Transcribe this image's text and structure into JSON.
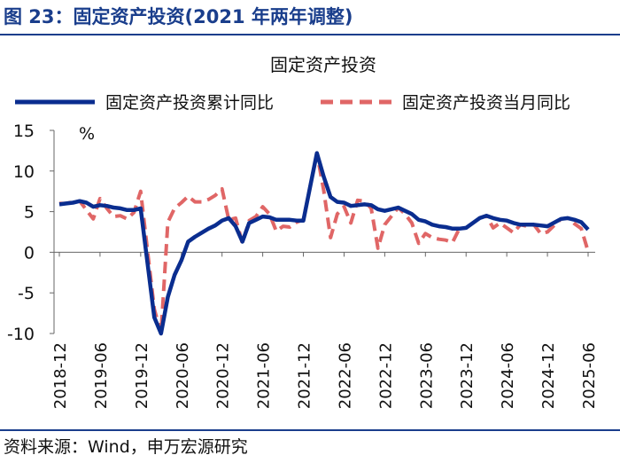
{
  "figure_title": "图 23：固定资产投资(2021 年两年调整)",
  "source": "资料来源：Wind，申万宏源研究",
  "colors": {
    "title": "#1a3e8c",
    "series_cumulative": "#0a2d8f",
    "series_monthly": "#e06666"
  },
  "chart_data": {
    "type": "line",
    "title": "固定资产投资",
    "unit_label": "%",
    "ylim": [
      -10,
      15
    ],
    "yticks": [
      15,
      10,
      5,
      0,
      -5,
      -10
    ],
    "grid": false,
    "legend_position": "top",
    "x_tick_labels": [
      "2018-12",
      "2019-06",
      "2019-12",
      "2020-06",
      "2020-12",
      "2021-06",
      "2021-12",
      "2022-06",
      "2022-12",
      "2023-06",
      "2023-12",
      "2024-06",
      "2024-12",
      "2025-06"
    ],
    "series": [
      {
        "name": "固定资产投资累计同比",
        "style": "solid",
        "color": "#0a2d8f",
        "points": [
          [
            "2018-12",
            5.9
          ],
          [
            "2019-01",
            6.0
          ],
          [
            "2019-02",
            6.1
          ],
          [
            "2019-03",
            6.3
          ],
          [
            "2019-04",
            6.1
          ],
          [
            "2019-05",
            5.6
          ],
          [
            "2019-06",
            5.8
          ],
          [
            "2019-07",
            5.7
          ],
          [
            "2019-08",
            5.5
          ],
          [
            "2019-09",
            5.4
          ],
          [
            "2019-10",
            5.2
          ],
          [
            "2019-11",
            5.2
          ],
          [
            "2019-12",
            5.4
          ],
          [
            "2020-02",
            -8.0
          ],
          [
            "2020-03",
            -10.0
          ],
          [
            "2020-04",
            -5.5
          ],
          [
            "2020-05",
            -2.8
          ],
          [
            "2020-06",
            -1.0
          ],
          [
            "2020-07",
            1.3
          ],
          [
            "2020-08",
            1.9
          ],
          [
            "2020-09",
            2.4
          ],
          [
            "2020-10",
            2.9
          ],
          [
            "2020-11",
            3.3
          ],
          [
            "2020-12",
            3.9
          ],
          [
            "2021-01",
            4.2
          ],
          [
            "2021-02",
            3.2
          ],
          [
            "2021-03",
            1.3
          ],
          [
            "2021-04",
            3.6
          ],
          [
            "2021-05",
            4.0
          ],
          [
            "2021-06",
            4.4
          ],
          [
            "2021-07",
            4.3
          ],
          [
            "2021-08",
            4.0
          ],
          [
            "2021-09",
            4.0
          ],
          [
            "2021-10",
            4.0
          ],
          [
            "2021-11",
            3.9
          ],
          [
            "2021-12",
            3.9
          ],
          [
            "2022-02",
            12.2
          ],
          [
            "2022-03",
            9.3
          ],
          [
            "2022-04",
            6.8
          ],
          [
            "2022-05",
            6.2
          ],
          [
            "2022-06",
            6.1
          ],
          [
            "2022-07",
            5.7
          ],
          [
            "2022-08",
            5.8
          ],
          [
            "2022-09",
            5.9
          ],
          [
            "2022-10",
            5.8
          ],
          [
            "2022-11",
            5.3
          ],
          [
            "2022-12",
            5.1
          ],
          [
            "2023-02",
            5.5
          ],
          [
            "2023-03",
            5.1
          ],
          [
            "2023-04",
            4.7
          ],
          [
            "2023-05",
            4.0
          ],
          [
            "2023-06",
            3.8
          ],
          [
            "2023-07",
            3.4
          ],
          [
            "2023-08",
            3.2
          ],
          [
            "2023-09",
            3.1
          ],
          [
            "2023-10",
            2.9
          ],
          [
            "2023-11",
            2.9
          ],
          [
            "2023-12",
            3.0
          ],
          [
            "2024-02",
            4.2
          ],
          [
            "2024-03",
            4.5
          ],
          [
            "2024-04",
            4.2
          ],
          [
            "2024-05",
            4.0
          ],
          [
            "2024-06",
            3.9
          ],
          [
            "2024-07",
            3.6
          ],
          [
            "2024-08",
            3.4
          ],
          [
            "2024-09",
            3.4
          ],
          [
            "2024-10",
            3.4
          ],
          [
            "2024-11",
            3.3
          ],
          [
            "2024-12",
            3.2
          ],
          [
            "2025-02",
            4.1
          ],
          [
            "2025-03",
            4.2
          ],
          [
            "2025-04",
            4.0
          ],
          [
            "2025-05",
            3.7
          ],
          [
            "2025-06",
            2.8
          ]
        ]
      },
      {
        "name": "固定资产投资当月同比",
        "style": "dashed",
        "color": "#e06666",
        "points": [
          [
            "2018-12",
            6.0
          ],
          [
            "2019-01",
            6.0
          ],
          [
            "2019-02",
            6.2
          ],
          [
            "2019-03",
            6.3
          ],
          [
            "2019-04",
            5.2
          ],
          [
            "2019-05",
            4.1
          ],
          [
            "2019-06",
            6.6
          ],
          [
            "2019-07",
            5.4
          ],
          [
            "2019-08",
            4.4
          ],
          [
            "2019-09",
            4.5
          ],
          [
            "2019-10",
            4.1
          ],
          [
            "2019-11",
            4.9
          ],
          [
            "2019-12",
            7.5
          ],
          [
            "2020-02",
            -7.0
          ],
          [
            "2020-03",
            -10.0
          ],
          [
            "2020-04",
            3.7
          ],
          [
            "2020-05",
            5.4
          ],
          [
            "2020-06",
            6.1
          ],
          [
            "2020-07",
            6.9
          ],
          [
            "2020-08",
            6.2
          ],
          [
            "2020-09",
            6.2
          ],
          [
            "2020-10",
            6.5
          ],
          [
            "2020-11",
            7.0
          ],
          [
            "2020-12",
            7.8
          ],
          [
            "2021-01",
            4.0
          ],
          [
            "2021-02",
            4.2
          ],
          [
            "2021-03",
            1.1
          ],
          [
            "2021-04",
            3.9
          ],
          [
            "2021-05",
            4.4
          ],
          [
            "2021-06",
            5.6
          ],
          [
            "2021-07",
            4.7
          ],
          [
            "2021-08",
            2.6
          ],
          [
            "2021-09",
            3.2
          ],
          [
            "2021-10",
            3.1
          ],
          [
            "2021-11",
            3.7
          ],
          [
            "2021-12",
            4.0
          ],
          [
            "2022-02",
            12.2
          ],
          [
            "2022-03",
            7.6
          ],
          [
            "2022-04",
            1.8
          ],
          [
            "2022-05",
            4.7
          ],
          [
            "2022-06",
            5.6
          ],
          [
            "2022-07",
            3.6
          ],
          [
            "2022-08",
            6.4
          ],
          [
            "2022-09",
            6.3
          ],
          [
            "2022-10",
            5.4
          ],
          [
            "2022-11",
            0.5
          ],
          [
            "2022-12",
            3.4
          ],
          [
            "2023-02",
            5.5
          ],
          [
            "2023-03",
            4.7
          ],
          [
            "2023-04",
            3.6
          ],
          [
            "2023-05",
            1.1
          ],
          [
            "2023-06",
            2.3
          ],
          [
            "2023-07",
            1.8
          ],
          [
            "2023-08",
            1.6
          ],
          [
            "2023-09",
            1.5
          ],
          [
            "2023-10",
            1.2
          ],
          [
            "2023-11",
            2.9
          ],
          [
            "2023-12",
            3.0
          ],
          [
            "2024-02",
            4.2
          ],
          [
            "2024-03",
            4.5
          ],
          [
            "2024-04",
            3.0
          ],
          [
            "2024-05",
            3.6
          ],
          [
            "2024-06",
            3.0
          ],
          [
            "2024-07",
            2.4
          ],
          [
            "2024-08",
            3.4
          ],
          [
            "2024-09",
            3.2
          ],
          [
            "2024-10",
            3.4
          ],
          [
            "2024-11",
            2.3
          ],
          [
            "2024-12",
            2.5
          ],
          [
            "2025-02",
            4.1
          ],
          [
            "2025-03",
            4.2
          ],
          [
            "2025-04",
            3.5
          ],
          [
            "2025-05",
            2.9
          ],
          [
            "2025-06",
            0.1
          ]
        ]
      }
    ]
  }
}
